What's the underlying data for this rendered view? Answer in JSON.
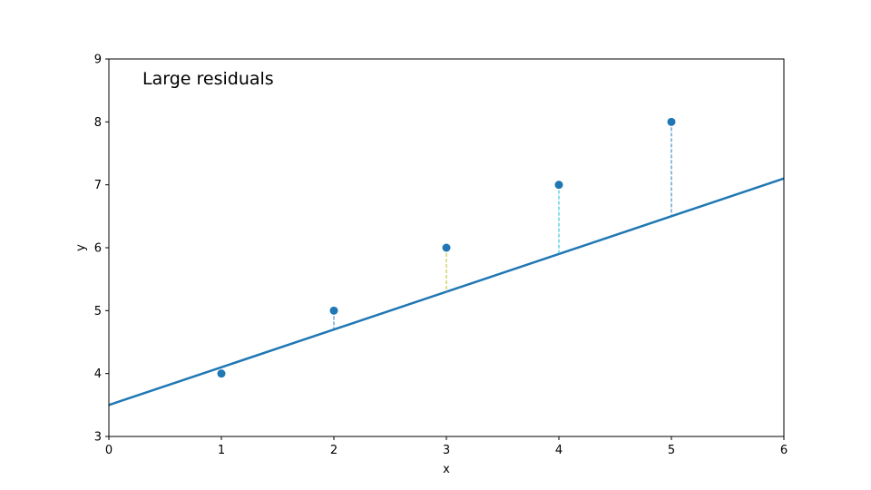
{
  "chart_data": {
    "type": "scatter",
    "title": "",
    "annotation": "Large residuals",
    "xlabel": "x",
    "ylabel": "y",
    "xlim": [
      0,
      6
    ],
    "ylim": [
      3,
      9
    ],
    "xticks": [
      0,
      1,
      2,
      3,
      4,
      5,
      6
    ],
    "yticks": [
      3,
      4,
      5,
      6,
      7,
      8,
      9
    ],
    "grid": false,
    "points": {
      "x": [
        1,
        2,
        3,
        4,
        5
      ],
      "y": [
        4,
        5,
        6,
        7,
        8
      ],
      "color": "#1f77b4"
    },
    "fit_line": {
      "intercept": 3.5,
      "slope": 0.6,
      "color": "#1f77b4"
    },
    "residuals": [
      {
        "x": 1,
        "from": 4.0,
        "to": 4.1,
        "color": "#1f77b4"
      },
      {
        "x": 2,
        "from": 5.0,
        "to": 4.7,
        "color": "#1f77b4"
      },
      {
        "x": 3,
        "from": 6.0,
        "to": 5.3,
        "color": "#bcbd22"
      },
      {
        "x": 4,
        "from": 7.0,
        "to": 5.9,
        "color": "#17becf"
      },
      {
        "x": 5,
        "from": 8.0,
        "to": 6.5,
        "color": "#1f77b4"
      }
    ]
  }
}
